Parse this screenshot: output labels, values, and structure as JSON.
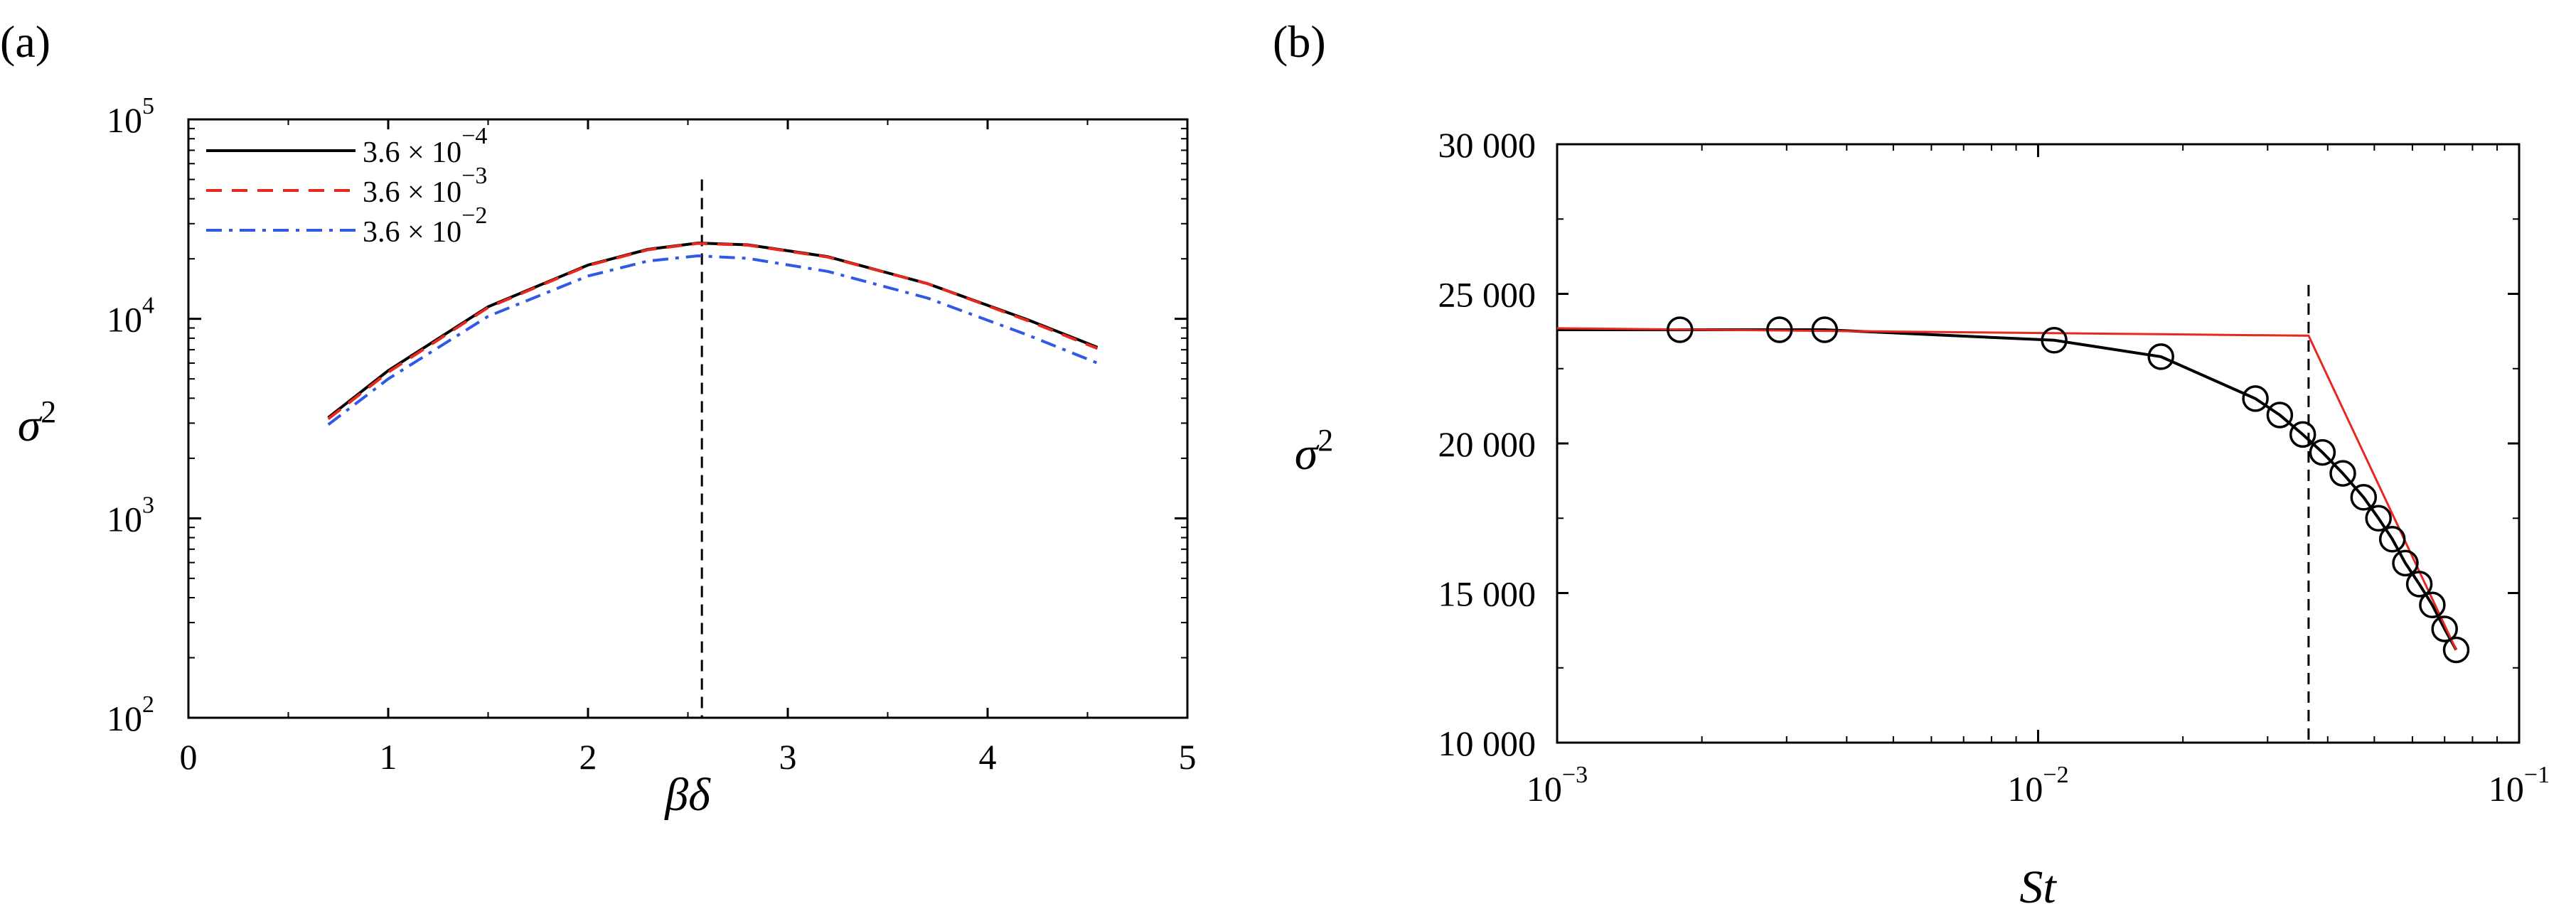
{
  "panels": {
    "a_label": "(a)",
    "b_label": "(b)"
  },
  "chart_data": [
    {
      "id": "a",
      "type": "line",
      "xlabel": "βδ",
      "ylabel": "σ2",
      "xlim": [
        0,
        5
      ],
      "ylim": [
        100,
        100000
      ],
      "yscale": "log",
      "xticks": [
        "0",
        "1",
        "2",
        "3",
        "4",
        "5"
      ],
      "yticks": [
        {
          "base": "10",
          "exp": "2"
        },
        {
          "base": "10",
          "exp": "3"
        },
        {
          "base": "10",
          "exp": "4"
        },
        {
          "base": "10",
          "exp": "5"
        }
      ],
      "legend_position": "top-left",
      "vline": {
        "x": 2.57,
        "y_top": 50000
      },
      "series": [
        {
          "name": "3.6 × 10",
          "name_exp": "−4",
          "color": "#000000",
          "style": "solid",
          "x": [
            0.7,
            1.0,
            1.5,
            2.0,
            2.3,
            2.55,
            2.8,
            3.2,
            3.7,
            4.2,
            4.55
          ],
          "y": [
            3200,
            5500,
            11500,
            18600,
            22300,
            24000,
            23500,
            20500,
            15000,
            9900,
            7200
          ]
        },
        {
          "name": "3.6 × 10",
          "name_exp": "−3",
          "color": "#e8281e",
          "style": "dashed",
          "x": [
            0.7,
            1.0,
            1.5,
            2.0,
            2.3,
            2.55,
            2.8,
            3.2,
            3.7,
            4.2,
            4.55
          ],
          "y": [
            3150,
            5400,
            11400,
            18500,
            22200,
            23900,
            23400,
            20400,
            15000,
            9800,
            7100
          ]
        },
        {
          "name": "3.6 × 10",
          "name_exp": "−2",
          "color": "#2f59e6",
          "style": "dashdot",
          "x": [
            0.7,
            1.0,
            1.5,
            2.0,
            2.3,
            2.55,
            2.8,
            3.2,
            3.7,
            4.2,
            4.55
          ],
          "y": [
            2950,
            5000,
            10300,
            16400,
            19500,
            20700,
            20100,
            17300,
            12700,
            8300,
            6000
          ]
        }
      ]
    },
    {
      "id": "b",
      "type": "scatter",
      "xlabel": "St",
      "ylabel": "σ2",
      "xlim": [
        0.001,
        0.1
      ],
      "ylim": [
        10000,
        30000
      ],
      "xscale": "log",
      "xticks": [
        {
          "base": "10",
          "exp": "−3"
        },
        {
          "base": "10",
          "exp": "−2"
        },
        {
          "base": "10",
          "exp": "−1"
        }
      ],
      "yticks": [
        "10 000",
        "15 000",
        "20 000",
        "25 000",
        "30 000"
      ],
      "vline": {
        "x": 0.0365,
        "y_top": 25300
      },
      "series": [
        {
          "color": "#000000",
          "style": "solid-with-open-circles",
          "x": [
            0.0018,
            0.0029,
            0.0036,
            0.0108,
            0.018,
            0.0283,
            0.0318,
            0.0355,
            0.039,
            0.043,
            0.0475,
            0.051,
            0.0545,
            0.058,
            0.062,
            0.066,
            0.07,
            0.074
          ],
          "y": [
            23800,
            23800,
            23800,
            23450,
            22900,
            21500,
            20950,
            20300,
            19700,
            19000,
            18200,
            17500,
            16800,
            16000,
            15300,
            14600,
            13800,
            13100
          ]
        },
        {
          "color": "#e8281e",
          "style": "solid",
          "x": [
            0.001,
            0.0365,
            0.074
          ],
          "y": [
            23850,
            23600,
            13100
          ]
        }
      ]
    }
  ]
}
